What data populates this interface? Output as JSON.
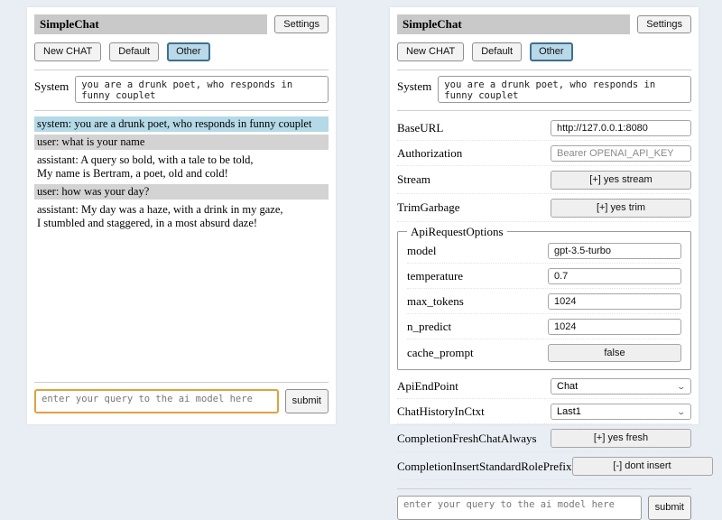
{
  "app": {
    "title": "SimpleChat",
    "settings_button": "Settings",
    "sessions": {
      "new_chat": "New CHAT",
      "default": "Default",
      "other": "Other",
      "selected": "Other"
    },
    "system_label": "System",
    "system_prompt": "you are a drunk poet, who responds in funny couplet",
    "query_placeholder": "enter your query to the ai model here",
    "submit_button": "submit"
  },
  "chat": {
    "messages": [
      {
        "role": "system",
        "text": "system: you are a drunk poet, who responds in funny couplet"
      },
      {
        "role": "user",
        "text": "user: what is your name"
      },
      {
        "role": "assistant",
        "text": "assistant: A query so bold, with a tale to be told,\nMy name is Bertram, a poet, old and cold!"
      },
      {
        "role": "user",
        "text": "user: how was your day?"
      },
      {
        "role": "assistant",
        "text": "assistant: My day was a haze, with a drink in my gaze,\nI stumbled and staggered, in a most absurd daze!"
      }
    ]
  },
  "settings": {
    "base_url": {
      "label": "BaseURL",
      "value": "http://127.0.0.1:8080"
    },
    "authorization": {
      "label": "Authorization",
      "placeholder": "Bearer OPENAI_API_KEY"
    },
    "stream": {
      "label": "Stream",
      "button": "[+] yes stream"
    },
    "trim_garbage": {
      "label": "TrimGarbage",
      "button": "[+] yes trim"
    },
    "api_request_options": {
      "legend": "ApiRequestOptions",
      "model": {
        "label": "model",
        "value": "gpt-3.5-turbo"
      },
      "temperature": {
        "label": "temperature",
        "value": "0.7"
      },
      "max_tokens": {
        "label": "max_tokens",
        "value": "1024"
      },
      "n_predict": {
        "label": "n_predict",
        "value": "1024"
      },
      "cache_prompt": {
        "label": "cache_prompt",
        "button": "false"
      }
    },
    "api_endpoint": {
      "label": "ApiEndPoint",
      "selected": "Chat"
    },
    "chat_history_in_ctxt": {
      "label": "ChatHistoryInCtxt",
      "selected": "Last1"
    },
    "completion_fresh_chat_always": {
      "label": "CompletionFreshChatAlways",
      "button": "[+] yes fresh"
    },
    "completion_insert_standard_role_prefix": {
      "label": "CompletionInsertStandardRolePrefix",
      "button": "[-] dont insert"
    }
  },
  "colors": {
    "page_background": "#e9eef5",
    "heading_background": "#c9c9c9",
    "system_message_background": "#b4d9e7",
    "user_message_background": "#d3d3d3",
    "selected_session_background": "#b9d9e8",
    "selected_session_border": "#3f6f90",
    "query_highlight_border": "#dca244"
  }
}
